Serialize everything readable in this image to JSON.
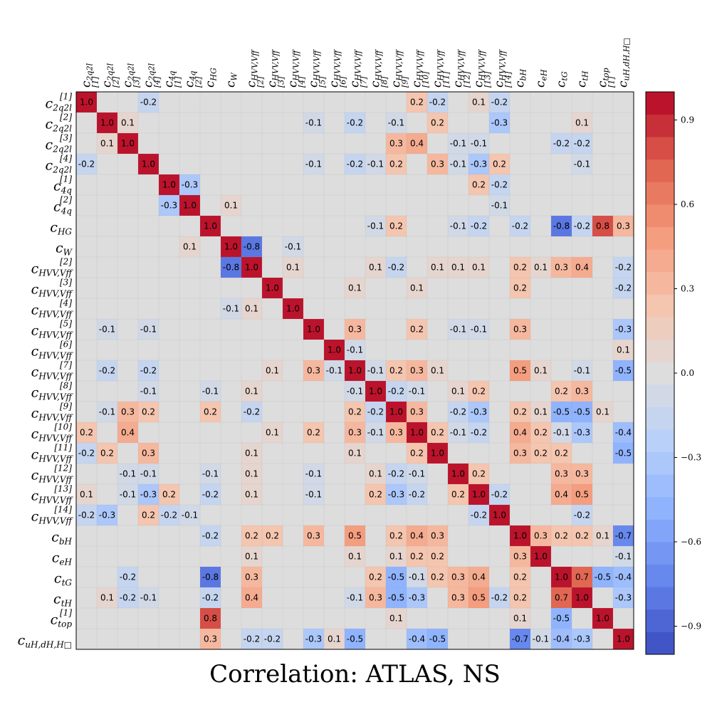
{
  "chart_data": {
    "type": "heatmap",
    "title": "Correlation: ATLAS, NS",
    "labels": [
      {
        "base": "c",
        "sub": "2q2l",
        "sup": "[1]"
      },
      {
        "base": "c",
        "sub": "2q2l",
        "sup": "[2]"
      },
      {
        "base": "c",
        "sub": "2q2l",
        "sup": "[3]"
      },
      {
        "base": "c",
        "sub": "2q2l",
        "sup": "[4]"
      },
      {
        "base": "c",
        "sub": "4q",
        "sup": "[1]"
      },
      {
        "base": "c",
        "sub": "4q",
        "sup": "[2]"
      },
      {
        "base": "c",
        "sub": "HG",
        "sup": ""
      },
      {
        "base": "c",
        "sub": "W",
        "sup": ""
      },
      {
        "base": "c",
        "sub": "HVV,Vff",
        "sup": "[2]"
      },
      {
        "base": "c",
        "sub": "HVV,Vff",
        "sup": "[3]"
      },
      {
        "base": "c",
        "sub": "HVV,Vff",
        "sup": "[4]"
      },
      {
        "base": "c",
        "sub": "HVV,Vff",
        "sup": "[5]"
      },
      {
        "base": "c",
        "sub": "HVV,Vff",
        "sup": "[6]"
      },
      {
        "base": "c",
        "sub": "HVV,Vff",
        "sup": "[7]"
      },
      {
        "base": "c",
        "sub": "HVV,Vff",
        "sup": "[8]"
      },
      {
        "base": "c",
        "sub": "HVV,Vff",
        "sup": "[9]"
      },
      {
        "base": "c",
        "sub": "HVV,Vff",
        "sup": "[10]"
      },
      {
        "base": "c",
        "sub": "HVV,Vff",
        "sup": "[11]"
      },
      {
        "base": "c",
        "sub": "HVV,Vff",
        "sup": "[12]"
      },
      {
        "base": "c",
        "sub": "HVV,Vff",
        "sup": "[13]"
      },
      {
        "base": "c",
        "sub": "HVV,Vff",
        "sup": "[14]"
      },
      {
        "base": "c",
        "sub": "bH",
        "sup": ""
      },
      {
        "base": "c",
        "sub": "eH",
        "sup": ""
      },
      {
        "base": "c",
        "sub": "tG",
        "sup": ""
      },
      {
        "base": "c",
        "sub": "tH",
        "sup": ""
      },
      {
        "base": "c",
        "sub": "top",
        "sup": "[1]"
      },
      {
        "base": "c",
        "sub": "uH,dH,H□",
        "sup": ""
      }
    ],
    "entries": [
      [
        0,
        3,
        -0.2
      ],
      [
        0,
        16,
        0.2
      ],
      [
        0,
        17,
        -0.2
      ],
      [
        0,
        19,
        0.1
      ],
      [
        0,
        20,
        -0.2
      ],
      [
        1,
        2,
        0.1
      ],
      [
        1,
        11,
        -0.1
      ],
      [
        1,
        13,
        -0.2
      ],
      [
        1,
        15,
        -0.1
      ],
      [
        1,
        17,
        0.2
      ],
      [
        1,
        20,
        -0.3
      ],
      [
        1,
        24,
        0.1
      ],
      [
        2,
        15,
        0.3
      ],
      [
        2,
        16,
        0.4
      ],
      [
        2,
        18,
        -0.1
      ],
      [
        2,
        19,
        -0.1
      ],
      [
        2,
        23,
        -0.2
      ],
      [
        2,
        24,
        -0.2
      ],
      [
        3,
        11,
        -0.1
      ],
      [
        3,
        13,
        -0.2
      ],
      [
        3,
        14,
        -0.1
      ],
      [
        3,
        15,
        0.2
      ],
      [
        3,
        17,
        0.3
      ],
      [
        3,
        18,
        -0.1
      ],
      [
        3,
        19,
        -0.3
      ],
      [
        3,
        20,
        0.2
      ],
      [
        3,
        24,
        -0.1
      ],
      [
        4,
        5,
        -0.3
      ],
      [
        4,
        19,
        0.2
      ],
      [
        4,
        20,
        -0.2
      ],
      [
        5,
        7,
        0.1
      ],
      [
        5,
        20,
        -0.1
      ],
      [
        6,
        14,
        -0.1
      ],
      [
        6,
        15,
        0.2
      ],
      [
        6,
        18,
        -0.1
      ],
      [
        6,
        19,
        -0.2
      ],
      [
        6,
        21,
        -0.2
      ],
      [
        6,
        23,
        -0.8
      ],
      [
        6,
        24,
        -0.2
      ],
      [
        6,
        25,
        0.8
      ],
      [
        6,
        26,
        0.3
      ],
      [
        7,
        8,
        -0.8
      ],
      [
        7,
        10,
        -0.1
      ],
      [
        8,
        10,
        0.1
      ],
      [
        8,
        14,
        0.1
      ],
      [
        8,
        15,
        -0.2
      ],
      [
        8,
        17,
        0.1
      ],
      [
        8,
        18,
        0.1
      ],
      [
        8,
        19,
        0.1
      ],
      [
        8,
        21,
        0.2
      ],
      [
        8,
        22,
        0.1
      ],
      [
        8,
        23,
        0.3
      ],
      [
        8,
        24,
        0.4
      ],
      [
        8,
        26,
        -0.2
      ],
      [
        9,
        13,
        0.1
      ],
      [
        9,
        16,
        0.1
      ],
      [
        9,
        21,
        0.2
      ],
      [
        9,
        26,
        -0.2
      ],
      [
        11,
        13,
        0.3
      ],
      [
        11,
        16,
        0.2
      ],
      [
        11,
        18,
        -0.1
      ],
      [
        11,
        19,
        -0.1
      ],
      [
        11,
        21,
        0.3
      ],
      [
        11,
        26,
        -0.3
      ],
      [
        12,
        13,
        -0.1
      ],
      [
        12,
        26,
        0.1
      ],
      [
        13,
        14,
        -0.1
      ],
      [
        13,
        15,
        0.2
      ],
      [
        13,
        16,
        0.3
      ],
      [
        13,
        17,
        0.1
      ],
      [
        13,
        21,
        0.5
      ],
      [
        13,
        22,
        0.1
      ],
      [
        13,
        24,
        -0.1
      ],
      [
        13,
        26,
        -0.5
      ],
      [
        14,
        15,
        -0.2
      ],
      [
        14,
        16,
        -0.1
      ],
      [
        14,
        18,
        0.1
      ],
      [
        14,
        19,
        0.2
      ],
      [
        14,
        23,
        0.2
      ],
      [
        14,
        24,
        0.3
      ],
      [
        15,
        16,
        0.3
      ],
      [
        15,
        18,
        -0.2
      ],
      [
        15,
        19,
        -0.3
      ],
      [
        15,
        21,
        0.2
      ],
      [
        15,
        22,
        0.1
      ],
      [
        15,
        23,
        -0.5
      ],
      [
        15,
        24,
        -0.5
      ],
      [
        15,
        25,
        0.1
      ],
      [
        16,
        17,
        0.2
      ],
      [
        16,
        18,
        -0.1
      ],
      [
        16,
        19,
        -0.2
      ],
      [
        16,
        21,
        0.4
      ],
      [
        16,
        22,
        0.2
      ],
      [
        16,
        23,
        -0.1
      ],
      [
        16,
        24,
        -0.3
      ],
      [
        16,
        26,
        -0.4
      ],
      [
        17,
        21,
        0.3
      ],
      [
        17,
        22,
        0.2
      ],
      [
        17,
        23,
        0.2
      ],
      [
        17,
        26,
        -0.5
      ],
      [
        18,
        19,
        0.2
      ],
      [
        18,
        23,
        0.3
      ],
      [
        18,
        24,
        0.3
      ],
      [
        19,
        20,
        -0.2
      ],
      [
        19,
        23,
        0.4
      ],
      [
        19,
        24,
        0.5
      ],
      [
        20,
        24,
        -0.2
      ],
      [
        21,
        22,
        0.3
      ],
      [
        21,
        23,
        0.2
      ],
      [
        21,
        24,
        0.2
      ],
      [
        21,
        25,
        0.1
      ],
      [
        21,
        26,
        -0.7
      ],
      [
        22,
        26,
        -0.1
      ],
      [
        23,
        24,
        0.7
      ],
      [
        23,
        25,
        -0.5
      ],
      [
        23,
        26,
        -0.4
      ],
      [
        24,
        26,
        -0.3
      ]
    ],
    "colorbar": {
      "range": [
        -1,
        1
      ],
      "ticks": [
        0.9,
        0.6,
        0.3,
        0.0,
        -0.3,
        -0.6,
        -0.9
      ],
      "tick_labels": [
        "0.9",
        "0.6",
        "0.3",
        "0.0",
        "−0.3",
        "−0.6",
        "−0.9"
      ],
      "levels": 25,
      "colormap": "coolwarm"
    }
  }
}
